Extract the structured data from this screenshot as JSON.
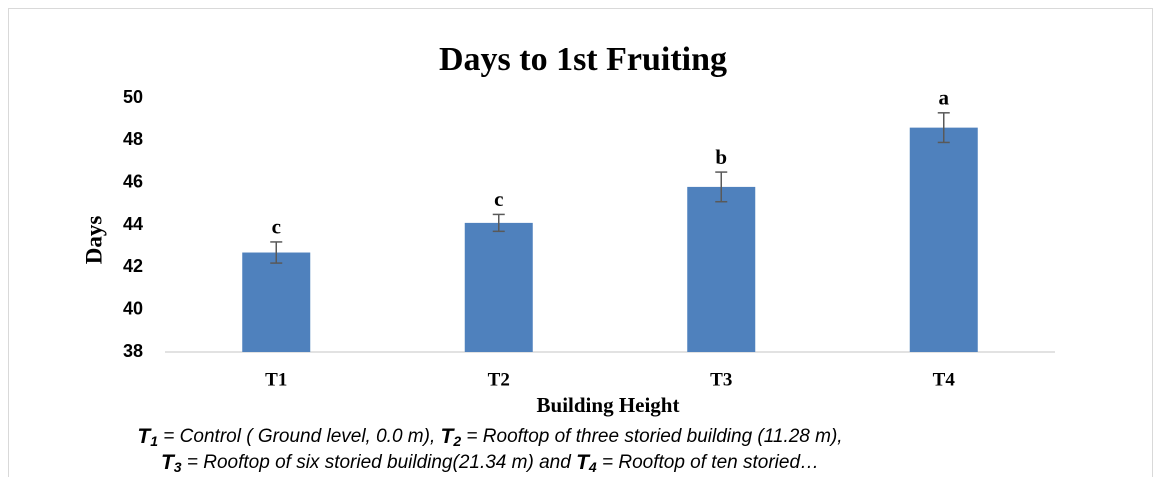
{
  "chart_data": {
    "type": "bar",
    "title": "Days to 1st Fruiting",
    "x_label": "Building Height",
    "y_label": "Days",
    "categories": [
      "T1",
      "T2",
      "T3",
      "T4"
    ],
    "values": [
      42.7,
      44.1,
      45.8,
      48.6
    ],
    "errors": [
      0.5,
      0.4,
      0.7,
      0.7
    ],
    "letters": [
      "c",
      "c",
      "b",
      "a"
    ],
    "color": "#4f81bd",
    "error_color": "#595959",
    "ylim": [
      38,
      50
    ],
    "yticks": [
      38,
      40,
      42,
      44,
      46,
      48,
      50
    ],
    "grid": false
  },
  "caption": [
    [
      {
        "sym": "T",
        "sub": "1",
        "text": " = Control ( Ground level, 0.0 m), "
      },
      {
        "sym": "T",
        "sub": "2",
        "text": " = Rooftop of three storied  building (11.28 m),"
      }
    ],
    [
      {
        "sym": "T",
        "sub": "3",
        "text": " = Rooftop of six storied building(21.34 m) and "
      },
      {
        "sym": "T",
        "sub": "4",
        "text": " = Rooftop  of ten storied…"
      }
    ]
  ]
}
